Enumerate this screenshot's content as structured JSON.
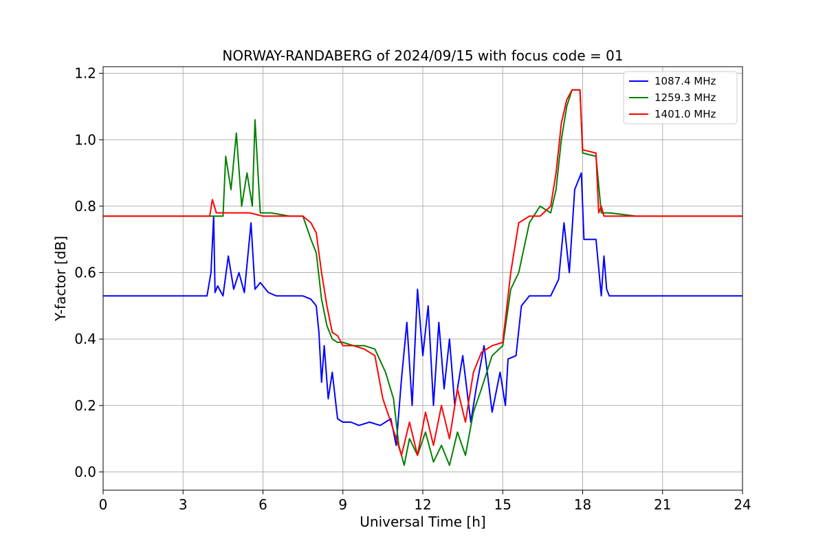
{
  "chart_data": {
    "type": "line",
    "title": "NORWAY-RANDABERG of 2024/09/15 with focus code = 01",
    "xlabel": "Universal Time [h]",
    "ylabel": "Y-factor [dB]",
    "xlim": [
      0,
      24
    ],
    "ylim": [
      -0.055,
      1.22
    ],
    "xticks": [
      0,
      3,
      6,
      9,
      12,
      15,
      18,
      21,
      24
    ],
    "yticks": [
      0.0,
      0.2,
      0.4,
      0.6,
      0.8,
      1.0,
      1.2
    ],
    "grid": true,
    "legend_position": "top-right",
    "series": [
      {
        "name": "1087.4 MHz",
        "color": "#0000ff",
        "x": [
          0,
          2,
          3.9,
          4.05,
          4.15,
          4.2,
          4.3,
          4.5,
          4.7,
          4.9,
          5.1,
          5.3,
          5.55,
          5.7,
          5.9,
          6.2,
          6.5,
          7.0,
          7.5,
          7.8,
          8.0,
          8.1,
          8.2,
          8.3,
          8.45,
          8.6,
          8.8,
          9.0,
          9.3,
          9.6,
          10.0,
          10.4,
          10.8,
          11.0,
          11.2,
          11.4,
          11.6,
          11.8,
          12.0,
          12.2,
          12.4,
          12.6,
          12.8,
          13.0,
          13.2,
          13.5,
          13.8,
          14.0,
          14.3,
          14.6,
          14.9,
          15.1,
          15.2,
          15.5,
          15.7,
          16.0,
          16.4,
          16.8,
          17.1,
          17.3,
          17.5,
          17.7,
          17.95,
          18.05,
          18.5,
          18.7,
          18.8,
          18.9,
          19.0,
          19.5,
          20,
          21,
          22,
          23,
          24
        ],
        "y": [
          0.53,
          0.53,
          0.53,
          0.6,
          0.77,
          0.54,
          0.56,
          0.53,
          0.65,
          0.55,
          0.6,
          0.54,
          0.75,
          0.55,
          0.57,
          0.54,
          0.53,
          0.53,
          0.53,
          0.52,
          0.5,
          0.42,
          0.27,
          0.38,
          0.22,
          0.3,
          0.16,
          0.15,
          0.15,
          0.14,
          0.15,
          0.14,
          0.16,
          0.08,
          0.28,
          0.45,
          0.2,
          0.55,
          0.35,
          0.5,
          0.2,
          0.45,
          0.25,
          0.4,
          0.2,
          0.35,
          0.15,
          0.25,
          0.38,
          0.18,
          0.3,
          0.2,
          0.34,
          0.35,
          0.5,
          0.53,
          0.53,
          0.53,
          0.58,
          0.75,
          0.6,
          0.85,
          0.9,
          0.7,
          0.7,
          0.53,
          0.65,
          0.55,
          0.53,
          0.53,
          0.53,
          0.53,
          0.53,
          0.53,
          0.53
        ]
      },
      {
        "name": "1259.3 MHz",
        "color": "#008000",
        "x": [
          0,
          2,
          4.0,
          4.5,
          4.6,
          4.8,
          5.0,
          5.2,
          5.4,
          5.6,
          5.7,
          5.9,
          6.3,
          7.0,
          7.5,
          7.8,
          8.0,
          8.2,
          8.4,
          8.6,
          8.8,
          9.0,
          9.4,
          9.8,
          10.2,
          10.6,
          10.9,
          11.1,
          11.3,
          11.5,
          11.8,
          12.1,
          12.4,
          12.7,
          13.0,
          13.3,
          13.6,
          13.9,
          14.2,
          14.6,
          15.0,
          15.3,
          15.6,
          16.0,
          16.4,
          16.8,
          17.0,
          17.2,
          17.4,
          17.6,
          17.9,
          18.0,
          18.5,
          18.7,
          19.0,
          20,
          21,
          22,
          23,
          24
        ],
        "y": [
          0.77,
          0.77,
          0.77,
          0.77,
          0.95,
          0.85,
          1.02,
          0.8,
          0.9,
          0.8,
          1.06,
          0.78,
          0.78,
          0.77,
          0.77,
          0.7,
          0.66,
          0.52,
          0.44,
          0.4,
          0.39,
          0.39,
          0.38,
          0.38,
          0.37,
          0.3,
          0.22,
          0.08,
          0.02,
          0.1,
          0.05,
          0.12,
          0.03,
          0.08,
          0.02,
          0.12,
          0.05,
          0.18,
          0.25,
          0.35,
          0.38,
          0.55,
          0.6,
          0.75,
          0.8,
          0.78,
          0.85,
          1.0,
          1.1,
          1.15,
          1.15,
          0.96,
          0.95,
          0.78,
          0.78,
          0.77,
          0.77,
          0.77,
          0.77,
          0.77
        ]
      },
      {
        "name": "1401.0 MHz",
        "color": "#ff0000",
        "x": [
          0,
          2,
          4.0,
          4.1,
          4.25,
          4.5,
          5.0,
          5.5,
          6.0,
          6.5,
          7.0,
          7.5,
          7.8,
          8.0,
          8.2,
          8.4,
          8.6,
          8.8,
          9.0,
          9.4,
          9.8,
          10.2,
          10.5,
          10.8,
          11.0,
          11.2,
          11.5,
          11.8,
          12.1,
          12.4,
          12.7,
          13.0,
          13.3,
          13.6,
          13.9,
          14.2,
          14.6,
          15.0,
          15.3,
          15.6,
          16.0,
          16.4,
          16.8,
          17.0,
          17.2,
          17.4,
          17.6,
          17.9,
          18.0,
          18.5,
          18.6,
          18.7,
          18.8,
          19.0,
          20,
          21,
          22,
          23,
          24
        ],
        "y": [
          0.77,
          0.77,
          0.77,
          0.82,
          0.78,
          0.78,
          0.78,
          0.78,
          0.77,
          0.77,
          0.77,
          0.77,
          0.75,
          0.72,
          0.6,
          0.5,
          0.42,
          0.41,
          0.38,
          0.38,
          0.37,
          0.35,
          0.22,
          0.15,
          0.1,
          0.05,
          0.15,
          0.05,
          0.18,
          0.08,
          0.2,
          0.1,
          0.25,
          0.15,
          0.3,
          0.36,
          0.38,
          0.39,
          0.6,
          0.75,
          0.77,
          0.77,
          0.8,
          0.9,
          1.05,
          1.12,
          1.15,
          1.15,
          0.97,
          0.96,
          0.78,
          0.8,
          0.77,
          0.77,
          0.77,
          0.77,
          0.77,
          0.77,
          0.77
        ]
      }
    ]
  }
}
